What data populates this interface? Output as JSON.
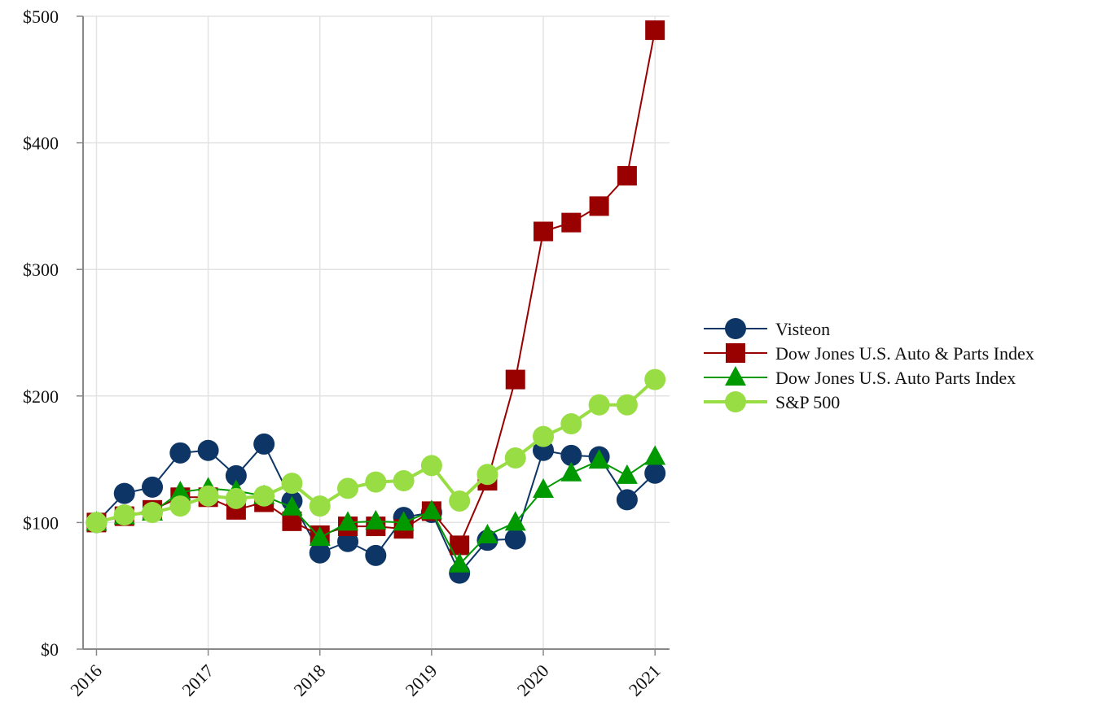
{
  "chart_data": {
    "type": "line",
    "title": "",
    "xlabel": "",
    "ylabel": "",
    "x": [
      2016.0,
      2016.25,
      2016.5,
      2016.75,
      2017.0,
      2017.25,
      2017.5,
      2017.75,
      2018.0,
      2018.25,
      2018.5,
      2018.75,
      2019.0,
      2019.25,
      2019.5,
      2019.75,
      2020.0,
      2020.25,
      2020.5,
      2020.75,
      2021.0
    ],
    "xlim": [
      2015.88,
      2021.13
    ],
    "ylim": [
      0,
      500
    ],
    "x_ticks": [
      2016,
      2017,
      2018,
      2019,
      2020,
      2021
    ],
    "x_tick_labels": [
      "2016",
      "2017",
      "2018",
      "2019",
      "2020",
      "2021"
    ],
    "y_ticks": [
      0,
      100,
      200,
      300,
      400,
      500
    ],
    "y_tick_labels": [
      "$0",
      "$100",
      "$200",
      "$300",
      "$400",
      "$500"
    ],
    "grid": true,
    "legend_position": "right",
    "series": [
      {
        "name": "Visteon",
        "color": "#0d3566",
        "marker": "circle",
        "line_width": "thin",
        "values": [
          100,
          123,
          128,
          155,
          157,
          137,
          162,
          117,
          76,
          85,
          74,
          104,
          108,
          60,
          86,
          87,
          157,
          153,
          152,
          118,
          139
        ]
      },
      {
        "name": "Dow Jones U.S. Auto & Parts Index",
        "color": "#990000",
        "marker": "square",
        "line_width": "thin",
        "values": [
          100,
          105,
          110,
          120,
          120,
          110,
          116,
          101,
          90,
          97,
          97,
          95,
          109,
          82,
          133,
          213,
          330,
          337,
          350,
          374,
          489
        ]
      },
      {
        "name": "Dow Jones U.S. Auto Parts Index",
        "color": "#009900",
        "marker": "triangle",
        "line_width": "thin",
        "values": [
          100,
          105,
          108,
          124,
          127,
          125,
          121,
          112,
          88,
          100,
          101,
          100,
          109,
          67,
          90,
          100,
          126,
          139,
          149,
          137,
          152
        ]
      },
      {
        "name": "S&P 500",
        "color": "#99dd44",
        "marker": "circle",
        "line_width": "thick",
        "values": [
          100,
          106,
          108,
          113,
          121,
          119,
          121,
          131,
          113,
          127,
          132,
          133,
          145,
          117,
          138,
          151,
          168,
          178,
          193,
          193,
          213
        ]
      }
    ]
  }
}
